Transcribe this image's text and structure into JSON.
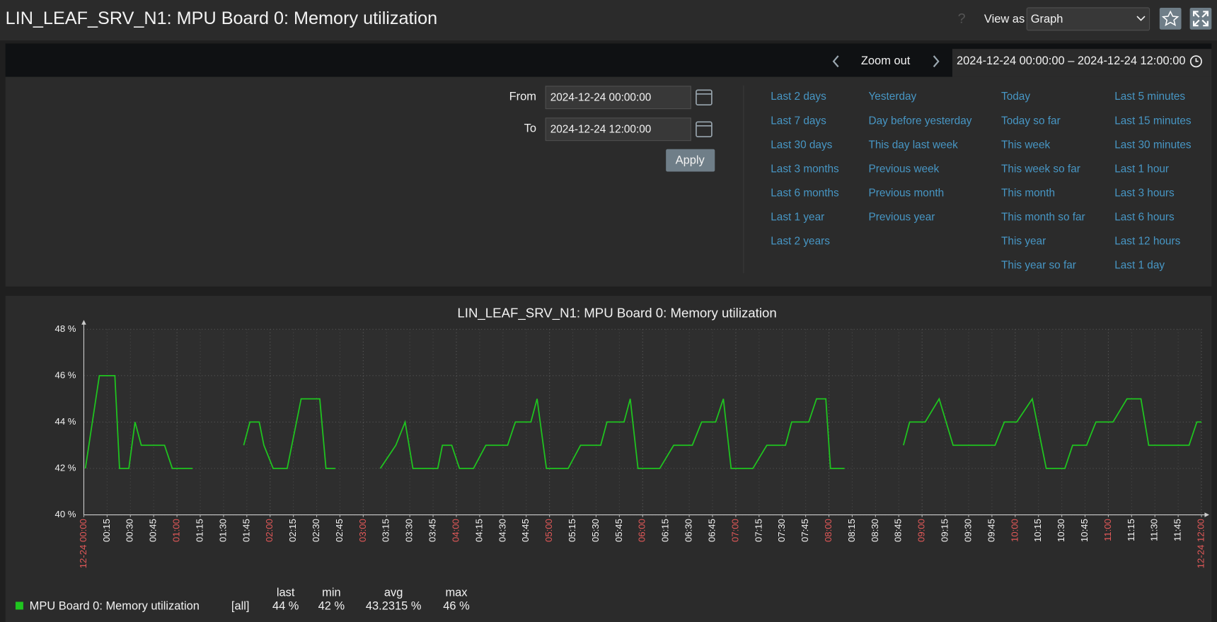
{
  "header": {
    "title": "LIN_LEAF_SRV_N1: MPU Board 0: Memory utilization",
    "help": "?",
    "view_as_label": "View as",
    "view_as_value": "Graph"
  },
  "timebar": {
    "zoom_out": "Zoom out",
    "range": "2024-12-24 00:00:00 – 2024-12-24 12:00:00"
  },
  "filter": {
    "from_label": "From",
    "from_value": "2024-12-24 00:00:00",
    "to_label": "To",
    "to_value": "2024-12-24 12:00:00",
    "apply": "Apply",
    "quick_ranges": [
      [
        "Last 2 days",
        "Last 7 days",
        "Last 30 days",
        "Last 3 months",
        "Last 6 months",
        "Last 1 year",
        "Last 2 years"
      ],
      [
        "Yesterday",
        "Day before yesterday",
        "This day last week",
        "Previous week",
        "Previous month",
        "Previous year"
      ],
      [
        "Today",
        "Today so far",
        "This week",
        "This week so far",
        "This month",
        "This month so far",
        "This year",
        "This year so far"
      ],
      [
        "Last 5 minutes",
        "Last 15 minutes",
        "Last 30 minutes",
        "Last 1 hour",
        "Last 3 hours",
        "Last 6 hours",
        "Last 12 hours",
        "Last 1 day"
      ]
    ]
  },
  "chart_data": {
    "type": "line",
    "title": "LIN_LEAF_SRV_N1: MPU Board 0: Memory utilization",
    "grid": true,
    "xlim": [
      "12-24 00:00",
      "12-24 12:00"
    ],
    "xticks": [
      "12-24 00:00",
      "00:15",
      "00:30",
      "00:45",
      "01:00",
      "01:15",
      "01:30",
      "01:45",
      "02:00",
      "02:15",
      "02:30",
      "02:45",
      "03:00",
      "03:15",
      "03:30",
      "03:45",
      "04:00",
      "04:15",
      "04:30",
      "04:45",
      "05:00",
      "05:15",
      "05:30",
      "05:45",
      "06:00",
      "06:15",
      "06:30",
      "06:45",
      "07:00",
      "07:15",
      "07:30",
      "07:45",
      "08:00",
      "08:15",
      "08:30",
      "08:45",
      "09:00",
      "09:15",
      "09:30",
      "09:45",
      "10:00",
      "10:15",
      "10:30",
      "10:45",
      "11:00",
      "11:15",
      "11:30",
      "11:45",
      "12-24 12:00"
    ],
    "ylim": [
      40,
      48
    ],
    "yticks": [
      {
        "value": 40,
        "label": "40 %"
      },
      {
        "value": 42,
        "label": "42 %"
      },
      {
        "value": 44,
        "label": "44 %"
      },
      {
        "value": 46,
        "label": "46 %"
      },
      {
        "value": 48,
        "label": "48 %"
      }
    ],
    "x": [
      "00:01",
      "00:10",
      "00:20",
      "00:23",
      "00:29",
      "00:33",
      "00:37",
      "00:52",
      "00:57",
      "01:10",
      "01:25",
      "01:43",
      "01:47",
      "01:53",
      "01:56",
      "02:02",
      "02:11",
      "02:20",
      "02:32",
      "02:36",
      "02:42",
      "02:55",
      "03:11",
      "03:21",
      "03:27",
      "03:32",
      "03:48",
      "03:51",
      "03:57",
      "04:02",
      "04:11",
      "04:19",
      "04:33",
      "04:38",
      "04:48",
      "04:52",
      "04:58",
      "05:12",
      "05:20",
      "05:33",
      "05:37",
      "05:48",
      "05:52",
      "05:57",
      "06:11",
      "06:20",
      "06:32",
      "06:38",
      "06:47",
      "06:52",
      "06:57",
      "07:11",
      "07:20",
      "07:32",
      "07:36",
      "07:47",
      "07:52",
      "07:58",
      "08:01",
      "08:10",
      "08:30",
      "08:48",
      "08:52",
      "09:02",
      "09:11",
      "09:20",
      "09:47",
      "09:53",
      "10:01",
      "10:11",
      "10:20",
      "10:32",
      "10:37",
      "10:46",
      "10:52",
      "11:03",
      "11:12",
      "11:21",
      "11:26",
      "11:52",
      "11:57",
      "12:00"
    ],
    "series": [
      {
        "name": "MPU Board 0: Memory utilization",
        "color": "#1fc51f",
        "values": [
          42,
          46,
          46,
          42,
          42,
          44,
          43,
          43,
          42,
          42,
          null,
          43,
          44,
          44,
          43,
          42,
          42,
          45,
          45,
          42,
          42,
          null,
          42,
          43,
          44,
          42,
          42,
          43,
          43,
          42,
          42,
          43,
          43,
          44,
          44,
          45,
          42,
          42,
          43,
          43,
          44,
          44,
          45,
          42,
          42,
          43,
          43,
          44,
          44,
          45,
          42,
          42,
          43,
          43,
          44,
          44,
          45,
          45,
          42,
          42,
          null,
          43,
          44,
          44,
          45,
          43,
          43,
          44,
          44,
          45,
          42,
          42,
          43,
          43,
          44,
          44,
          45,
          45,
          43,
          43,
          44,
          44
        ]
      }
    ],
    "legend": {
      "scope": "[all]",
      "stats": [
        {
          "name": "last",
          "value": 44,
          "label": "44 %"
        },
        {
          "name": "min",
          "value": 42,
          "label": "42 %"
        },
        {
          "name": "avg",
          "value": 43.2315,
          "label": "43.2315 %"
        },
        {
          "name": "max",
          "value": 46,
          "label": "46 %"
        }
      ]
    }
  }
}
